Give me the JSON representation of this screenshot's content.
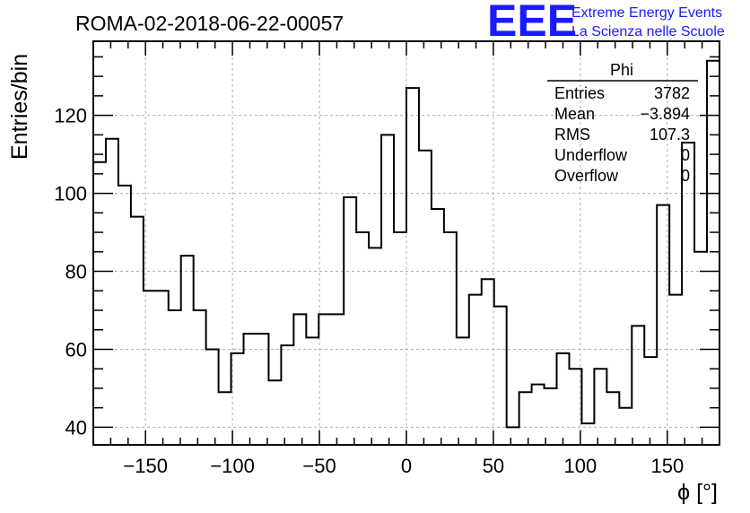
{
  "header": {
    "run_title": "ROMA-02-2018-06-22-00057",
    "logo": {
      "mark": "EEE",
      "line1": "Extreme Energy Events",
      "line2": "La Scienza nelle Scuole"
    }
  },
  "stats_box": {
    "title": "Phi",
    "rows": [
      {
        "label": "Entries",
        "value": "3782"
      },
      {
        "label": "Mean",
        "value": "−3.894"
      },
      {
        "label": "RMS",
        "value": "107.3"
      },
      {
        "label": "Underflow",
        "value": "0"
      },
      {
        "label": "Overflow",
        "value": "0"
      }
    ]
  },
  "colors": {
    "line": "#000000",
    "grid": "#b0b0b0",
    "logo": "#1a1aff"
  },
  "chart_data": {
    "type": "histogram",
    "title": "ROMA-02-2018-06-22-00057",
    "xlabel": "ϕ [°]",
    "ylabel": "Entries/bin",
    "xlim": [
      -180,
      180
    ],
    "ylim": [
      35.5,
      139
    ],
    "grid": true,
    "bin_width": 7.2,
    "bin_edges_start": -180,
    "x_ticks": [
      -150,
      -100,
      -50,
      0,
      50,
      100,
      150
    ],
    "x_tick_labels": [
      "−150",
      "−100",
      "−50",
      "0",
      "50",
      "100",
      "150"
    ],
    "y_ticks": [
      40,
      60,
      80,
      100,
      120
    ],
    "y_tick_labels": [
      "40",
      "60",
      "80",
      "100",
      "120"
    ],
    "values": [
      108,
      114,
      102,
      94,
      75,
      75,
      70,
      84,
      70,
      60,
      49,
      59,
      64,
      64,
      52,
      61,
      69,
      63,
      69,
      69,
      99,
      90,
      86,
      115,
      90,
      127,
      111,
      96,
      90,
      63,
      74,
      78,
      71,
      40,
      49,
      51,
      50,
      59,
      55,
      41,
      55,
      49,
      45,
      66,
      58,
      97,
      74,
      113,
      85,
      134
    ]
  }
}
